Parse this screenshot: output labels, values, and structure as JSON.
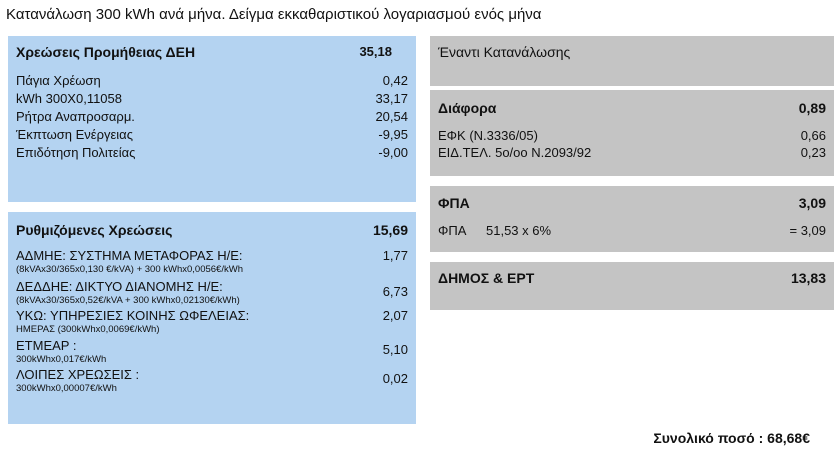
{
  "title": "Κατανάλωση 300 kWh ανά μήνα. Δείγμα εκκαθαριστικού λογαριασμού ενός μήνα",
  "supply": {
    "heading": "Χρεώσεις Προμήθειας ΔΕΗ",
    "heading_value": "35,18",
    "items": [
      {
        "label": "Πάγια Χρέωση",
        "value": "0,42"
      },
      {
        "label": "kWh 300X0,11058",
        "value": "33,17"
      },
      {
        "label": "Ρήτρα Αναπροσαρμ.",
        "value": "20,54"
      },
      {
        "label": "Έκπτωση Ενέργειας",
        "value": "-9,95"
      },
      {
        "label": "Επιδότηση Πολιτείας",
        "value": "-9,00"
      }
    ]
  },
  "regulated": {
    "heading": "Ρυθμιζόμενες Χρεώσεις",
    "heading_value": "15,69",
    "items": [
      {
        "label": "ΑΔΜΗΕ: ΣΥΣΤΗΜΑ ΜΕΤΑΦΟΡΑΣ Η/Ε:",
        "detail": "(8kVAx30/365x0,130 €/kVA) + 300 kWhx0,0056€/kWh",
        "value": "1,77"
      },
      {
        "label": "ΔΕΔΔΗΕ: ΔΙΚΤΥΟ ΔΙΑΝΟΜΗΣ Η/Ε:",
        "detail": "(8kVAx30/365x0,52€/kVA + 300 kWhx0,02130€/kWh)",
        "value": "6,73"
      },
      {
        "label": "ΥΚΩ: ΥΠΗΡΕΣΙΕΣ ΚΟΙΝΗΣ ΩΦΕΛΕΙΑΣ:",
        "detail": "ΗΜΕΡΑΣ  (300kWhx0,0069€/kWh)",
        "value": "2,07"
      },
      {
        "label": "ΕΤΜΕΑΡ :",
        "detail": "300kWhx0,017€/kWh",
        "value": "5,10"
      },
      {
        "label": "ΛΟΙΠΕΣ ΧΡΕΩΣΕΙΣ :",
        "detail": "300kWhx0,00007€/kWh",
        "value": "0,02"
      }
    ]
  },
  "against": {
    "heading": "Έναντι Κατανάλωσης"
  },
  "various": {
    "heading": "Διάφορα",
    "heading_value": "0,89",
    "items": [
      {
        "label": "ΕΦΚ (Ν.3336/05)",
        "value": "0,66"
      },
      {
        "label": "ΕΙΔ.ΤΕΛ. 5ο/οο Ν.2093/92",
        "value": "0,23"
      }
    ]
  },
  "vat": {
    "heading": "ΦΠΑ",
    "heading_value": "3,09",
    "label": "ΦΠΑ",
    "formula": "51,53 x 6%",
    "value": "= 3,09"
  },
  "municipal": {
    "heading": "ΔΗΜΟΣ & ΕΡΤ",
    "heading_value": "13,83"
  },
  "total": {
    "label": "Συνολικό ποσό :  68,68€"
  }
}
